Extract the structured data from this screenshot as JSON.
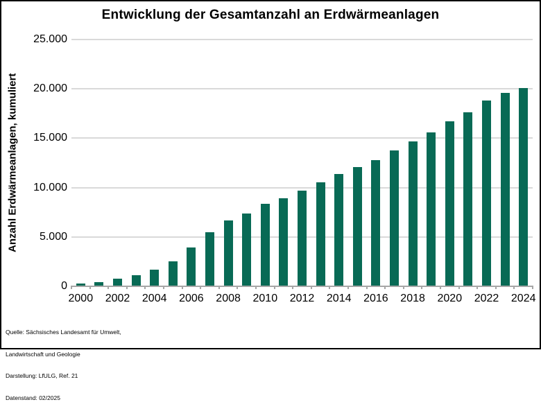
{
  "title": "Entwicklung der Gesamtanzahl an Erdwärmeanlagen",
  "y_axis_label": "Anzahl Erdwärmeanlagen, kumuliert",
  "chart_data": {
    "type": "bar",
    "title": "Entwicklung der Gesamtanzahl an Erdwärmeanlagen",
    "xlabel": "",
    "ylabel": "Anzahl Erdwärmeanlagen, kumuliert",
    "categories": [
      "2000",
      "2001",
      "2002",
      "2003",
      "2004",
      "2005",
      "2006",
      "2007",
      "2008",
      "2009",
      "2010",
      "2011",
      "2012",
      "2013",
      "2014",
      "2015",
      "2016",
      "2017",
      "2018",
      "2019",
      "2020",
      "2021",
      "2022",
      "2023",
      "2024"
    ],
    "values": [
      300,
      450,
      750,
      1150,
      1700,
      2550,
      3950,
      5450,
      6650,
      7400,
      8350,
      8950,
      9700,
      10550,
      11350,
      12100,
      12800,
      13750,
      14700,
      15600,
      16700,
      17650,
      18800,
      19600,
      20100
    ],
    "ylim": [
      0,
      25000
    ],
    "y_tick_step": 5000,
    "y_tick_labels": [
      "0",
      "5.000",
      "10.000",
      "15.000",
      "20.000",
      "25.000"
    ],
    "x_tick_labels_shown": [
      "2000",
      "2002",
      "2004",
      "2006",
      "2008",
      "2010",
      "2012",
      "2014",
      "2016",
      "2018",
      "2020",
      "2022",
      "2024"
    ],
    "grid": true,
    "legend_position": "none",
    "bar_color": "#086a55",
    "gridline_color": "#d9d9d9",
    "axis_color": "#a6a6a6"
  },
  "footer": {
    "lines": [
      "Quelle: Sächsisches Landesamt für Umwelt,",
      "Landwirtschaft und Geologie",
      "Darstellung: LfULG, Ref. 21",
      "Datenstand: 02/2025"
    ]
  }
}
